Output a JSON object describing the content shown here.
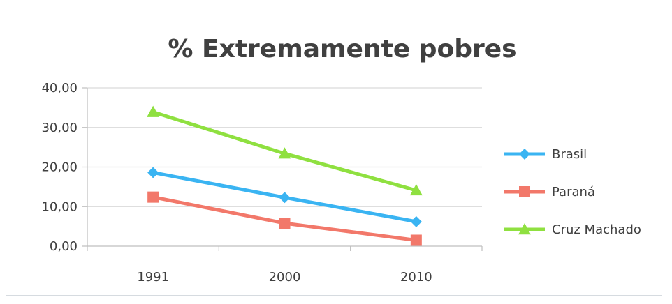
{
  "chart_data": {
    "type": "line",
    "title": "% Extremamente pobres",
    "xlabel": "",
    "ylabel": "",
    "categories": [
      "1991",
      "2000",
      "2010"
    ],
    "ylim": [
      0,
      40
    ],
    "yticks": [
      0,
      10,
      20,
      30,
      40
    ],
    "ytick_labels": [
      "0,00",
      "10,00",
      "20,00",
      "30,00",
      "40,00"
    ],
    "grid": true,
    "legend_position": "right",
    "series": [
      {
        "name": "Brasil",
        "values": [
          18.6,
          12.3,
          6.2
        ],
        "color": "#3ab4f2",
        "marker": "diamond"
      },
      {
        "name": "Paraná",
        "values": [
          12.4,
          5.8,
          1.5
        ],
        "color": "#f2786a",
        "marker": "square"
      },
      {
        "name": "Cruz Machado",
        "values": [
          33.9,
          23.4,
          14.1
        ],
        "color": "#8fe040",
        "marker": "triangle"
      }
    ]
  }
}
